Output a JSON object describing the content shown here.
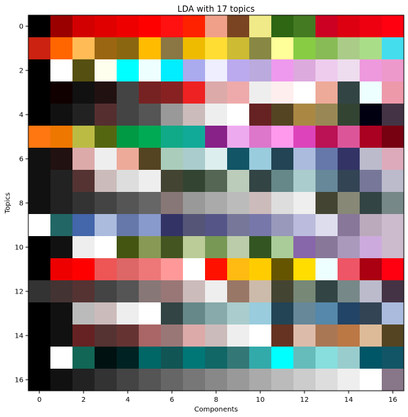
{
  "chart_data": {
    "type": "heatmap",
    "title": "LDA with 17 topics",
    "xlabel": "Components",
    "ylabel": "Topics",
    "x_ticks": [
      0,
      2,
      4,
      6,
      8,
      10,
      12,
      14,
      16
    ],
    "y_ticks": [
      0,
      2,
      4,
      6,
      8,
      10,
      12,
      14,
      16
    ],
    "n_rows": 17,
    "n_cols": 17,
    "grid": false,
    "colors": [
      [
        "#000000",
        "#9b0000",
        "#d20000",
        "#e00000",
        "#ee0000",
        "#ff0000",
        "#ff1111",
        "#ff2200",
        "#f0a088",
        "#7a4422",
        "#f0ea88",
        "#2e6614",
        "#447a22",
        "#cc0022",
        "#dd0011",
        "#ee0011",
        "#ff0011"
      ],
      [
        "#cc2211",
        "#ff6600",
        "#ffbb55",
        "#9b6611",
        "#8b6611",
        "#ffbb00",
        "#8b7744",
        "#eebb00",
        "#ffdd33",
        "#ccbb33",
        "#888844",
        "#ffff99",
        "#88cc44",
        "#88bb55",
        "#aacc88",
        "#aadd88",
        "#44ddee"
      ],
      [
        "#000000",
        "#ffffff",
        "#554f11",
        "#ffffee",
        "#00ffff",
        "#eeffff",
        "#00eeff",
        "#aaaaee",
        "#eeeeff",
        "#bbaaee",
        "#bbaadd",
        "#ee99ee",
        "#ddaadd",
        "#eeccee",
        "#eeddee",
        "#ee99dd",
        "#ee99cc"
      ],
      [
        "#000000",
        "#110000",
        "#111111",
        "#221111",
        "#444444",
        "#772222",
        "#882222",
        "#ee2222",
        "#ddaaaa",
        "#eeaaaa",
        "#eeeeee",
        "#ffeeee",
        "#ffffff",
        "#eeaa99",
        "#334444",
        "#eeffff",
        "#ee99aa"
      ],
      [
        "#000000",
        "#111111",
        "#222222",
        "#552f2f",
        "#444444",
        "#555555",
        "#999999",
        "#ccbbbb",
        "#eeeeee",
        "#ffffff",
        "#662222",
        "#554422",
        "#aa8844",
        "#998855",
        "#334433",
        "#000011",
        "#443344"
      ],
      [
        "#ff7711",
        "#ee7700",
        "#bbbb44",
        "#556611",
        "#009944",
        "#00aa55",
        "#11aa88",
        "#11aa99",
        "#882288",
        "#eeaaee",
        "#dd77cc",
        "#ff99ee",
        "#dd44bb",
        "#bb1155",
        "#dd5599",
        "#aa0022",
        "#770011"
      ],
      [
        "#111111",
        "#221111",
        "#ddaaaa",
        "#eeeeee",
        "#eeaa99",
        "#554422",
        "#aaccbb",
        "#aacccc",
        "#ddeeee",
        "#115566",
        "#99ccdd",
        "#224455",
        "#aabbdd",
        "#6677aa",
        "#333366",
        "#bbbbcc",
        "#ddaabb"
      ],
      [
        "#111111",
        "#222222",
        "#553333",
        "#ccbbbb",
        "#dddddd",
        "#eeeeee",
        "#444433",
        "#334433",
        "#556655",
        "#bbccbb",
        "#334444",
        "#668888",
        "#aacccc",
        "#668899",
        "#334455",
        "#777799",
        "#bbbbcc"
      ],
      [
        "#111111",
        "#222222",
        "#333333",
        "#444444",
        "#555555",
        "#666666",
        "#887777",
        "#999999",
        "#aaaaaa",
        "#bbbbbb",
        "#ccbbbb",
        "#dddddd",
        "#eeeeee",
        "#444433",
        "#888877",
        "#334444",
        "#778888"
      ],
      [
        "#ffffff",
        "#226666",
        "#4466aa",
        "#aabbdd",
        "#6677aa",
        "#8899cc",
        "#333366",
        "#555577",
        "#555588",
        "#777799",
        "#7777aa",
        "#9999bb",
        "#bbbbdd",
        "#ddddee",
        "#887799",
        "#bbaabb",
        "#ccbbcc"
      ],
      [
        "#000000",
        "#111111",
        "#eeeeee",
        "#ffffff",
        "#445511",
        "#889955",
        "#445522",
        "#bbcc99",
        "#779955",
        "#bbccaa",
        "#335522",
        "#aacc99",
        "#8866aa",
        "#887799",
        "#aa99bb",
        "#ccaadd",
        "#ccbbcc"
      ],
      [
        "#000000",
        "#ee0000",
        "#ff0000",
        "#ee5555",
        "#dd6666",
        "#ee7777",
        "#ff9999",
        "#ffffff",
        "#ff1100",
        "#ffbb11",
        "#ffcc00",
        "#665500",
        "#ffdd00",
        "#eeffff",
        "#ee5566",
        "#aa0011",
        "#ff0011"
      ],
      [
        "#333333",
        "#443333",
        "#553333",
        "#444444",
        "#555555",
        "#887777",
        "#997777",
        "#ccbbbb",
        "#eeeeee",
        "#997766",
        "#ccbbaa",
        "#444433",
        "#778877",
        "#334444",
        "#778888",
        "#bbbbcc",
        "#443344"
      ],
      [
        "#000000",
        "#111111",
        "#bbbbbb",
        "#ccbbbb",
        "#eeeeee",
        "#ffffff",
        "#334444",
        "#668888",
        "#88aaaa",
        "#aacccc",
        "#99ccdd",
        "#224455",
        "#668899",
        "#5588aa",
        "#224466",
        "#334455",
        "#aabbdd"
      ],
      [
        "#000000",
        "#111111",
        "#662222",
        "#553333",
        "#663333",
        "#aa6666",
        "#997777",
        "#ddaaaa",
        "#ccbbbb",
        "#eeeeee",
        "#ffffff",
        "#663322",
        "#ddbbaa",
        "#aa7755",
        "#bb7744",
        "#ddbb99",
        "#554422"
      ],
      [
        "#000000",
        "#ffffff",
        "#116655",
        "#001111",
        "#002222",
        "#006666",
        "#115555",
        "#007777",
        "#116666",
        "#337777",
        "#33aaaa",
        "#00ffff",
        "#66bbbb",
        "#88dddd",
        "#99cccc",
        "#005566",
        "#115566"
      ],
      [
        "#000000",
        "#111111",
        "#222222",
        "#333333",
        "#444444",
        "#555555",
        "#666666",
        "#777777",
        "#888888",
        "#999999",
        "#aaaaaa",
        "#bbbbbb",
        "#cccccc",
        "#dddddd",
        "#eeeeee",
        "#ffffff",
        "#887788"
      ]
    ]
  }
}
